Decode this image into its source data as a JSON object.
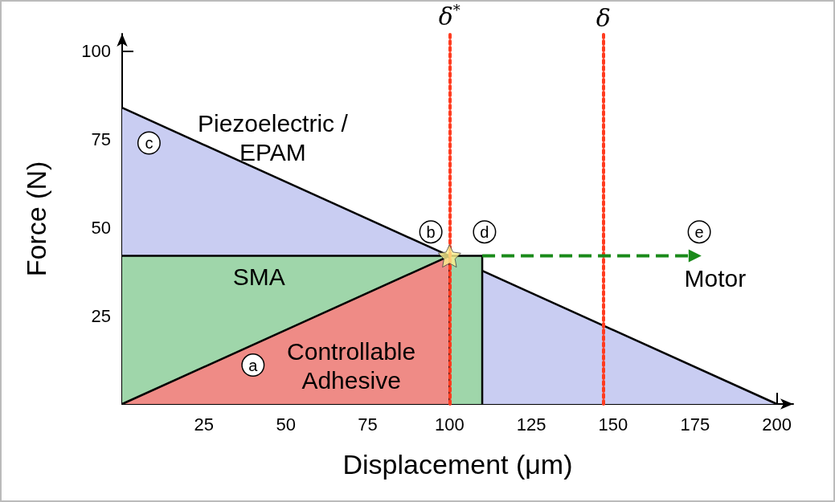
{
  "chart_data": {
    "type": "area",
    "xlabel": "Displacement (μm)",
    "ylabel": "Force (N)",
    "xlim": [
      0,
      205
    ],
    "ylim": [
      0,
      105
    ],
    "xticks": [
      25,
      50,
      75,
      100,
      125,
      150,
      175,
      200
    ],
    "yticks": [
      25,
      50,
      75,
      100
    ],
    "grid": false,
    "legend": "left",
    "series": [
      {
        "name": "Piezoelectric /\nEPAM",
        "color": "#c9cdf2",
        "x": [
          0,
          200
        ],
        "values": [
          84,
          0
        ]
      },
      {
        "name": "SMA",
        "color": "#9fd6aa",
        "x": [
          0,
          110,
          110
        ],
        "values": [
          42,
          42,
          0
        ]
      },
      {
        "name": "Controllable\nAdhesive",
        "color": "#ef8b86",
        "x": [
          0,
          100,
          100
        ],
        "values": [
          0,
          42,
          0
        ]
      },
      {
        "name": "Motor",
        "type": "line",
        "line_style": "dashed",
        "color": "#1a8a1a",
        "x": [
          110,
          175
        ],
        "values": [
          42,
          42
        ]
      },
      {
        "type": "scatter",
        "marker": "star",
        "color": "#fdf08c",
        "x": [
          100
        ],
        "values": [
          42
        ]
      }
    ],
    "ref_lines": [
      {
        "axis": "x",
        "value": 100,
        "label": "δ$^{*}$",
        "color": "#ff3b1f",
        "line_style": "dotted"
      },
      {
        "axis": "x",
        "value": 147,
        "label": "δ",
        "color": "#ff3b1f",
        "line_style": "dotted"
      }
    ],
    "annotations": [
      "a",
      "b",
      "c",
      "d",
      "e"
    ]
  }
}
